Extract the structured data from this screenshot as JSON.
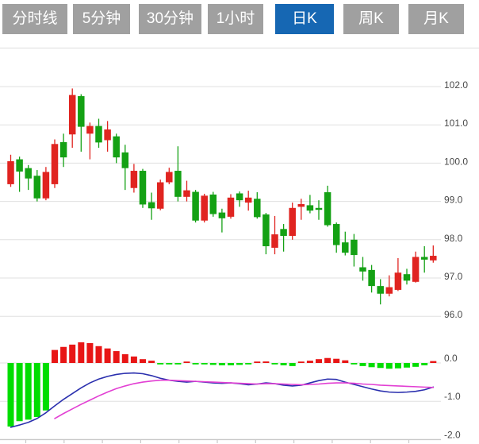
{
  "tabs": [
    {
      "label": "分时线",
      "slug": "time-share",
      "active": false
    },
    {
      "label": "5分钟",
      "slug": "5min",
      "active": false
    },
    {
      "label": "30分钟",
      "slug": "30min",
      "active": false
    },
    {
      "label": "1小时",
      "slug": "1hour",
      "active": false
    },
    {
      "label": "日K",
      "slug": "daily-k",
      "active": true
    },
    {
      "label": "周K",
      "slug": "weekly-k",
      "active": false
    },
    {
      "label": "月K",
      "slug": "monthly-k",
      "active": false
    }
  ],
  "colors": {
    "tab_bg": "#a0a0a0",
    "tab_active_bg": "#1667b3",
    "tab_text": "#ffffff",
    "up": "#e02420",
    "down": "#14a114",
    "macd_up": "#e81616",
    "macd_down": "#00dd00",
    "dif_line": "#2a2fae",
    "dea_line": "#e23fd3",
    "grid": "#e0e0e0",
    "axis_line": "#c9c9c9",
    "axis_text": "#4a4a4a"
  },
  "chart_data": {
    "type": "candlestick",
    "price_panel": {
      "y_ticks": [
        102,
        101,
        100,
        99,
        98,
        97,
        96
      ],
      "tick_labels": [
        "102.0",
        "101.0",
        "100.0",
        "99.0",
        "98.0",
        "97.0",
        "96.0"
      ],
      "ylim": [
        95.7,
        102.3
      ],
      "grid": true,
      "candles": [
        {
          "o": 99.45,
          "c": 100.05,
          "h": 100.22,
          "l": 99.38
        },
        {
          "o": 100.1,
          "c": 99.78,
          "h": 100.17,
          "l": 99.25
        },
        {
          "o": 99.87,
          "c": 99.6,
          "h": 99.95,
          "l": 99.3
        },
        {
          "o": 99.67,
          "c": 99.08,
          "h": 99.82,
          "l": 99.0
        },
        {
          "o": 99.08,
          "c": 99.77,
          "h": 99.9,
          "l": 99.03
        },
        {
          "o": 99.45,
          "c": 100.5,
          "h": 100.62,
          "l": 99.35
        },
        {
          "o": 100.55,
          "c": 100.15,
          "h": 100.77,
          "l": 99.9
        },
        {
          "o": 100.75,
          "c": 101.78,
          "h": 101.95,
          "l": 100.4
        },
        {
          "o": 101.75,
          "c": 100.95,
          "h": 101.8,
          "l": 100.3
        },
        {
          "o": 100.77,
          "c": 100.97,
          "h": 101.06,
          "l": 100.1
        },
        {
          "o": 100.97,
          "c": 100.54,
          "h": 101.16,
          "l": 100.4
        },
        {
          "o": 100.6,
          "c": 100.88,
          "h": 101.1,
          "l": 100.3
        },
        {
          "o": 100.7,
          "c": 100.15,
          "h": 100.77,
          "l": 100.0
        },
        {
          "o": 100.28,
          "c": 99.87,
          "h": 100.48,
          "l": 99.3
        },
        {
          "o": 99.35,
          "c": 99.8,
          "h": 99.98,
          "l": 99.23
        },
        {
          "o": 99.8,
          "c": 98.92,
          "h": 99.85,
          "l": 98.83
        },
        {
          "o": 98.98,
          "c": 98.82,
          "h": 99.23,
          "l": 98.52
        },
        {
          "o": 98.81,
          "c": 99.5,
          "h": 99.57,
          "l": 98.77
        },
        {
          "o": 99.5,
          "c": 99.77,
          "h": 99.88,
          "l": 99.45
        },
        {
          "o": 99.8,
          "c": 99.12,
          "h": 100.44,
          "l": 99.0
        },
        {
          "o": 99.12,
          "c": 99.29,
          "h": 99.54,
          "l": 99.0
        },
        {
          "o": 99.25,
          "c": 98.5,
          "h": 99.3,
          "l": 98.45
        },
        {
          "o": 98.5,
          "c": 99.15,
          "h": 99.2,
          "l": 98.45
        },
        {
          "o": 99.18,
          "c": 98.67,
          "h": 99.25,
          "l": 98.6
        },
        {
          "o": 98.71,
          "c": 98.56,
          "h": 98.81,
          "l": 98.19
        },
        {
          "o": 98.6,
          "c": 99.1,
          "h": 99.19,
          "l": 98.55
        },
        {
          "o": 99.21,
          "c": 99.03,
          "h": 99.26,
          "l": 98.86
        },
        {
          "o": 98.97,
          "c": 99.1,
          "h": 99.28,
          "l": 98.76
        },
        {
          "o": 99.07,
          "c": 98.59,
          "h": 99.24,
          "l": 98.55
        },
        {
          "o": 98.66,
          "c": 97.83,
          "h": 98.7,
          "l": 97.62
        },
        {
          "o": 97.79,
          "c": 98.14,
          "h": 98.62,
          "l": 97.62
        },
        {
          "o": 98.28,
          "c": 98.1,
          "h": 98.41,
          "l": 97.69
        },
        {
          "o": 98.1,
          "c": 98.83,
          "h": 98.97,
          "l": 98.0
        },
        {
          "o": 98.86,
          "c": 98.93,
          "h": 99.07,
          "l": 98.52
        },
        {
          "o": 98.9,
          "c": 98.76,
          "h": 99.17,
          "l": 98.69
        },
        {
          "o": 98.83,
          "c": 98.78,
          "h": 99.03,
          "l": 98.52
        },
        {
          "o": 99.24,
          "c": 98.38,
          "h": 99.41,
          "l": 98.34
        },
        {
          "o": 98.41,
          "c": 97.86,
          "h": 98.45,
          "l": 97.66
        },
        {
          "o": 97.93,
          "c": 97.66,
          "h": 98.21,
          "l": 97.59
        },
        {
          "o": 98.0,
          "c": 97.6,
          "h": 98.15,
          "l": 97.3
        },
        {
          "o": 97.28,
          "c": 97.17,
          "h": 97.55,
          "l": 96.93
        },
        {
          "o": 97.21,
          "c": 96.79,
          "h": 97.34,
          "l": 96.62
        },
        {
          "o": 96.79,
          "c": 96.59,
          "h": 96.97,
          "l": 96.31
        },
        {
          "o": 96.59,
          "c": 96.76,
          "h": 97.07,
          "l": 96.52
        },
        {
          "o": 96.69,
          "c": 97.14,
          "h": 97.52,
          "l": 96.66
        },
        {
          "o": 97.1,
          "c": 96.93,
          "h": 97.24,
          "l": 96.83
        },
        {
          "o": 96.9,
          "c": 97.55,
          "h": 97.69,
          "l": 96.88
        },
        {
          "o": 97.55,
          "c": 97.48,
          "h": 97.83,
          "l": 97.14
        },
        {
          "o": 97.46,
          "c": 97.58,
          "h": 97.85,
          "l": 97.4
        }
      ]
    },
    "macd_panel": {
      "y_ticks": [
        0,
        -1,
        -2
      ],
      "tick_labels": [
        "0.0",
        "-1.0",
        "-2.0"
      ],
      "ylim": [
        -2.1,
        0.6
      ],
      "grid": true,
      "histogram": [
        -1.66,
        -1.52,
        -1.48,
        -1.41,
        -1.24,
        0.34,
        0.42,
        0.48,
        0.54,
        0.52,
        0.44,
        0.38,
        0.31,
        0.23,
        0.17,
        0.1,
        0.06,
        -0.02,
        -0.03,
        -0.03,
        0.03,
        -0.02,
        -0.03,
        -0.05,
        -0.06,
        -0.06,
        -0.05,
        -0.03,
        0.02,
        0.04,
        -0.03,
        -0.06,
        -0.08,
        0.03,
        0.06,
        0.1,
        0.13,
        0.11,
        0.07,
        -0.02,
        -0.08,
        -0.11,
        -0.13,
        -0.15,
        -0.14,
        -0.12,
        -0.1,
        -0.06,
        0.05
      ],
      "dif": [
        -1.68,
        -1.62,
        -1.55,
        -1.45,
        -1.3,
        -1.12,
        -0.95,
        -0.8,
        -0.65,
        -0.52,
        -0.42,
        -0.35,
        -0.3,
        -0.27,
        -0.26,
        -0.28,
        -0.33,
        -0.4,
        -0.45,
        -0.48,
        -0.5,
        -0.48,
        -0.5,
        -0.52,
        -0.53,
        -0.52,
        -0.54,
        -0.57,
        -0.55,
        -0.52,
        -0.54,
        -0.58,
        -0.6,
        -0.58,
        -0.52,
        -0.46,
        -0.42,
        -0.43,
        -0.5,
        -0.56,
        -0.62,
        -0.68,
        -0.73,
        -0.76,
        -0.77,
        -0.76,
        -0.74,
        -0.7,
        -0.63
      ],
      "dea": [
        null,
        null,
        null,
        null,
        null,
        -1.45,
        -1.32,
        -1.2,
        -1.08,
        -0.97,
        -0.86,
        -0.76,
        -0.67,
        -0.6,
        -0.54,
        -0.5,
        -0.47,
        -0.45,
        -0.45,
        -0.46,
        -0.47,
        -0.48,
        -0.49,
        -0.5,
        -0.51,
        -0.52,
        -0.53,
        -0.54,
        -0.55,
        -0.54,
        -0.54,
        -0.55,
        -0.56,
        -0.57,
        -0.56,
        -0.55,
        -0.53,
        -0.52,
        -0.52,
        -0.53,
        -0.55,
        -0.56,
        -0.58,
        -0.59,
        -0.6,
        -0.61,
        -0.62,
        -0.63,
        -0.64
      ]
    }
  }
}
